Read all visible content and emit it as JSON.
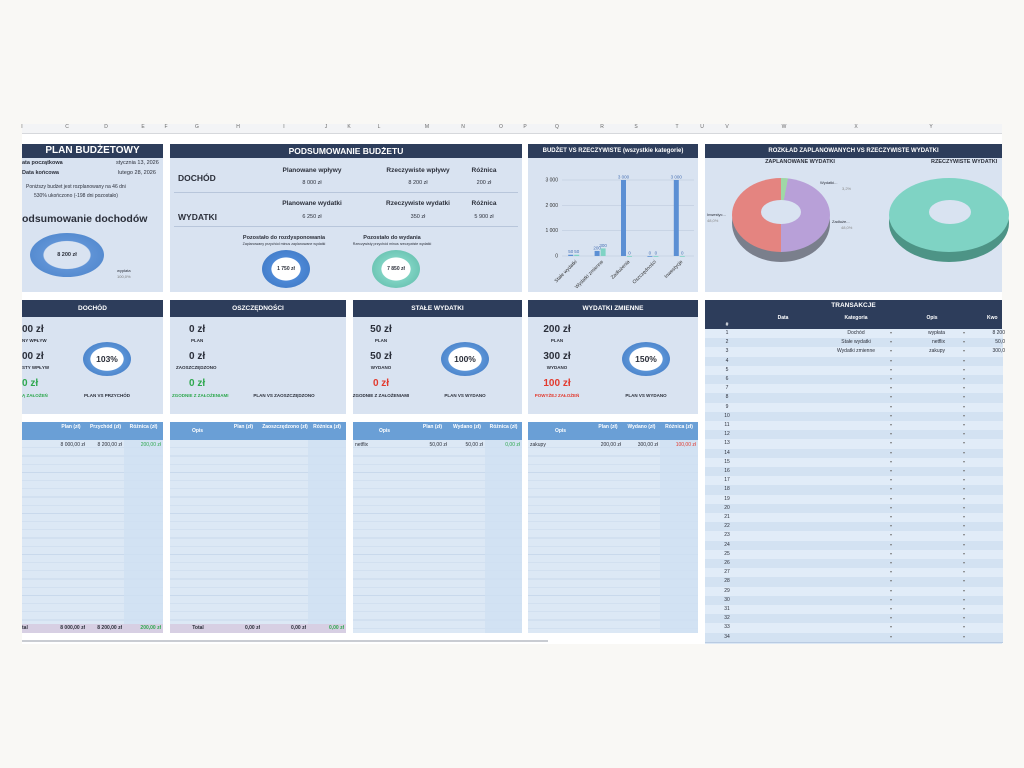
{
  "columns": [
    "I",
    "C",
    "D",
    "E",
    "F",
    "G",
    "H",
    "I",
    "J",
    "K",
    "L",
    "M",
    "N",
    "O",
    "P",
    "Q",
    "R",
    "S",
    "T",
    "U",
    "V",
    "W",
    "X",
    "Y"
  ],
  "plan": {
    "title": "PLAN BUDŻETOWY",
    "start_label": "ata początkowa",
    "start_value": "stycznia 13, 2026",
    "end_label": "Data końcowa",
    "end_value": "lutego 28, 2026",
    "note1": "Poniższy budżet jest rozplanowany na 46 dni",
    "note2": "530% ukończono (-198 dni pozostało)",
    "income_summary_title": "odsumowanie dochodów",
    "donut_value": "8 200 zł",
    "legend_label": "wypłata",
    "legend_pct": "100,0%"
  },
  "summary": {
    "title": "PODSUMOWANIE BUDŻETU",
    "income_label": "DOCHÓD",
    "expenses_label": "WYDATKI",
    "planned_income_label": "Planowane wpływy",
    "actual_income_label": "Rzeczywiste wpływy",
    "diff_label": "Różnica",
    "planned_income": "8 000 zł",
    "actual_income": "8 200 zł",
    "income_diff": "200 zł",
    "planned_exp_label": "Planowane wydatki",
    "actual_exp_label": "Rzeczywiste wydatki",
    "diff_label2": "Różnica",
    "planned_exp": "6 250 zł",
    "actual_exp": "350 zł",
    "exp_diff": "5 900 zł",
    "remain_alloc_title": "Pozostało do rozdysponowania",
    "remain_alloc_sub": "Zaplanowany przychód minus zaplanowane wydatki",
    "remain_alloc_value": "1 750 zł",
    "remain_spend_title": "Pozostało do wydania",
    "remain_spend_sub": "Rzeczywisty przychód minus rzeczywiste wydatki",
    "remain_spend_value": "7 850 zł"
  },
  "chart_data": {
    "type": "bar",
    "title": "BUDŻET VS RZECZYWISTE (wszystkie kategorie)",
    "categories": [
      "Stałe wydatki",
      "Wydatki zmienne",
      "Zadłużenia",
      "Oszczędności",
      "Inwestycje"
    ],
    "series": [
      {
        "name": "Plan",
        "values": [
          50,
          200,
          3000,
          0,
          3000
        ],
        "labels": [
          "50",
          "200",
          "3 000",
          "0",
          "3 000"
        ]
      },
      {
        "name": "Rzeczywiste",
        "values": [
          50,
          300,
          0,
          0,
          0
        ],
        "labels": [
          "50",
          "300",
          "0",
          "0",
          "0"
        ]
      }
    ],
    "yticks": [
      "3 000",
      "2 000",
      "1 000",
      "0"
    ],
    "ylim": [
      0,
      3000
    ],
    "colors": {
      "plan": "#5b8fd4",
      "actual": "#7fd3c4"
    }
  },
  "pie": {
    "title": "ROZKŁAD ZAPLANOWANYCH VS RZECZYWISTE WYDATKI",
    "planned_title": "ZAPLANOWANE WYDATKI",
    "actual_title": "RZECZYWISTE WYDATKI",
    "labels": [
      {
        "name": "Wydatki...",
        "pct": "3,2%"
      },
      {
        "name": "Inwestyc...",
        "pct": "48,0%"
      },
      {
        "name": "Zadłuże...",
        "pct": "48,0%"
      }
    ]
  },
  "cards": [
    {
      "title": "DOCHÓD",
      "v1": "00 zł",
      "l1": "NY WPŁYW",
      "v2": "00 zł",
      "l2": "STY WPŁYW",
      "v3": "0 zł",
      "l3": "Ą ZAŁOŻEŃ",
      "pct": "103%",
      "cap": "PLAN VS PRZYCHÓD"
    },
    {
      "title": "OSZCZĘDNOŚCI",
      "v1": "0 zł",
      "l1": "PLAN",
      "v2": "0 zł",
      "l2": "ZAOSZCZĘDZONO",
      "v3": "0 zł",
      "l3": "ZGODNIE Z ZAŁOŻENIAMI",
      "cap": "PLAN VS ZAOSZCZĘDZONO"
    },
    {
      "title": "STAŁE WYDATKI",
      "v1": "50 zł",
      "l1": "PLAN",
      "v2": "50 zł",
      "l2": "WYDANO",
      "v3": "0 zł",
      "l3": "ZGODNIE Z ZAŁOŻENIAMI",
      "pct": "100%",
      "cap": "PLAN VS WYDANO"
    },
    {
      "title": "WYDATKI ZMIENNE",
      "v1": "200 zł",
      "l1": "PLAN",
      "v2": "300 zł",
      "l2": "WYDANO",
      "v3": "100 zł",
      "l3": "POWYŻEJ ZAŁOŻEŃ",
      "pct": "150%",
      "cap": "PLAN VS WYDANO"
    }
  ],
  "tables": {
    "income": {
      "h": [
        "",
        "Plan (zł)",
        "Przychód (zł)",
        "Różnica (zł)"
      ],
      "row": [
        "",
        "8 000,00 zł",
        "8 200,00 zł",
        "200,00 zł"
      ],
      "total": [
        "tal",
        "8 000,00 zł",
        "8 200,00 zł",
        "200,00 zł"
      ]
    },
    "savings": {
      "h": [
        "Opis",
        "Plan (zł)",
        "Zaoszczędzono (zł)",
        "Różnica (zł)"
      ],
      "total": [
        "Total",
        "0,00 zł",
        "0,00 zł",
        "0,00 zł"
      ]
    },
    "fixed": {
      "h": [
        "Opis",
        "Plan (zł)",
        "Wydano (zł)",
        "Różnica (zł)"
      ],
      "row": [
        "netflix",
        "50,00 zł",
        "50,00 zł",
        "0,00 zł"
      ]
    },
    "variable": {
      "h": [
        "Opis",
        "Plan (zł)",
        "Wydano (zł)",
        "Różnica (zł)"
      ],
      "row": [
        "zakupy",
        "200,00 zł",
        "300,00 zł",
        "100,00 zł"
      ]
    }
  },
  "transactions": {
    "title": "TRANSAKCJE",
    "headers": [
      "#",
      "Data",
      "Kategoria",
      "Opis",
      "Kwo"
    ],
    "rows": [
      {
        "n": "1",
        "cat": "Dochód",
        "desc": "wypłata",
        "amt": "8 200"
      },
      {
        "n": "2",
        "cat": "Stałe wydatki",
        "desc": "netflix",
        "amt": "50,0"
      },
      {
        "n": "3",
        "cat": "Wydatki zmienne",
        "desc": "zakupy",
        "amt": "300,0"
      },
      {
        "n": "4"
      },
      {
        "n": "5"
      },
      {
        "n": "6"
      },
      {
        "n": "7"
      },
      {
        "n": "8"
      },
      {
        "n": "9"
      },
      {
        "n": "10"
      },
      {
        "n": "11"
      },
      {
        "n": "12"
      },
      {
        "n": "13"
      },
      {
        "n": "14"
      },
      {
        "n": "15"
      },
      {
        "n": "16"
      },
      {
        "n": "17"
      },
      {
        "n": "18"
      },
      {
        "n": "19"
      },
      {
        "n": "20"
      },
      {
        "n": "21"
      },
      {
        "n": "22"
      },
      {
        "n": "23"
      },
      {
        "n": "24"
      },
      {
        "n": "25"
      },
      {
        "n": "26"
      },
      {
        "n": "27"
      },
      {
        "n": "28"
      },
      {
        "n": "29"
      },
      {
        "n": "30"
      },
      {
        "n": "31"
      },
      {
        "n": "32"
      },
      {
        "n": "33"
      },
      {
        "n": "34"
      }
    ]
  }
}
